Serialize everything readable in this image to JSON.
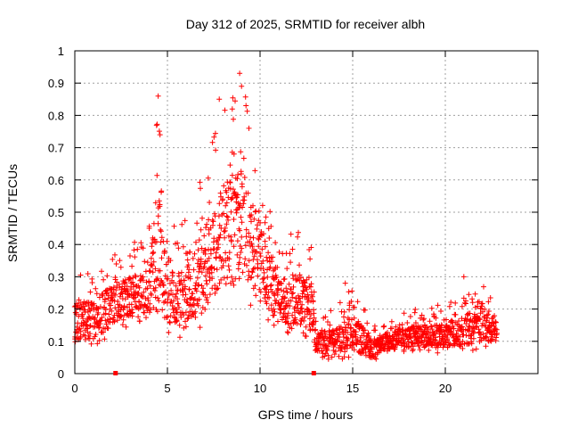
{
  "chart_data": {
    "type": "scatter",
    "title": "Day 312 of 2025, SRMTID for receiver albh",
    "xlabel": "GPS time / hours",
    "ylabel": "SRMTID / TECUs",
    "xlim": [
      0,
      25
    ],
    "ylim": [
      0,
      1
    ],
    "xticks": [
      0,
      5,
      10,
      15,
      20
    ],
    "yticks": [
      0,
      0.1,
      0.2,
      0.3,
      0.4,
      0.5,
      0.6,
      0.7,
      0.8,
      0.9,
      1
    ],
    "xtick_labels": [
      "0",
      "5",
      "10",
      "15",
      "20"
    ],
    "ytick_labels": [
      "0",
      "0.1",
      "0.2",
      "0.3",
      "0.4",
      "0.5",
      "0.6",
      "0.7",
      "0.8",
      "0.9",
      "1"
    ],
    "grid": true,
    "marker_color": "#ff0000",
    "marker": "+",
    "baseline_markers_x": [
      2.2,
      12.9
    ],
    "envelope": {
      "description": "approximate per-hour data envelope used to render the dense point cloud",
      "hours": [
        0,
        1,
        2,
        3,
        4,
        4.5,
        5,
        6,
        7,
        8,
        9,
        10,
        11,
        12,
        12.8,
        13,
        14,
        15,
        16,
        17,
        18,
        19,
        20,
        21,
        22,
        22.8
      ],
      "low": [
        0.08,
        0.08,
        0.12,
        0.15,
        0.14,
        0.15,
        0.12,
        0.1,
        0.15,
        0.2,
        0.22,
        0.2,
        0.12,
        0.12,
        0.1,
        0.05,
        0.04,
        0.05,
        0.03,
        0.06,
        0.07,
        0.07,
        0.06,
        0.07,
        0.07,
        0.09
      ],
      "high": [
        0.32,
        0.32,
        0.38,
        0.4,
        0.45,
        0.86,
        0.45,
        0.48,
        0.65,
        0.85,
        0.93,
        0.65,
        0.4,
        0.45,
        0.4,
        0.18,
        0.2,
        0.28,
        0.16,
        0.18,
        0.2,
        0.2,
        0.22,
        0.26,
        0.3,
        0.2
      ]
    },
    "notable_points": [
      {
        "x": 4.5,
        "y": 0.86
      },
      {
        "x": 4.6,
        "y": 0.74
      },
      {
        "x": 8.9,
        "y": 0.93
      },
      {
        "x": 9.0,
        "y": 0.89
      },
      {
        "x": 8.5,
        "y": 0.82
      },
      {
        "x": 7.8,
        "y": 0.85
      },
      {
        "x": 9.4,
        "y": 0.76
      },
      {
        "x": 14.6,
        "y": 0.28
      },
      {
        "x": 21.0,
        "y": 0.3
      }
    ]
  }
}
